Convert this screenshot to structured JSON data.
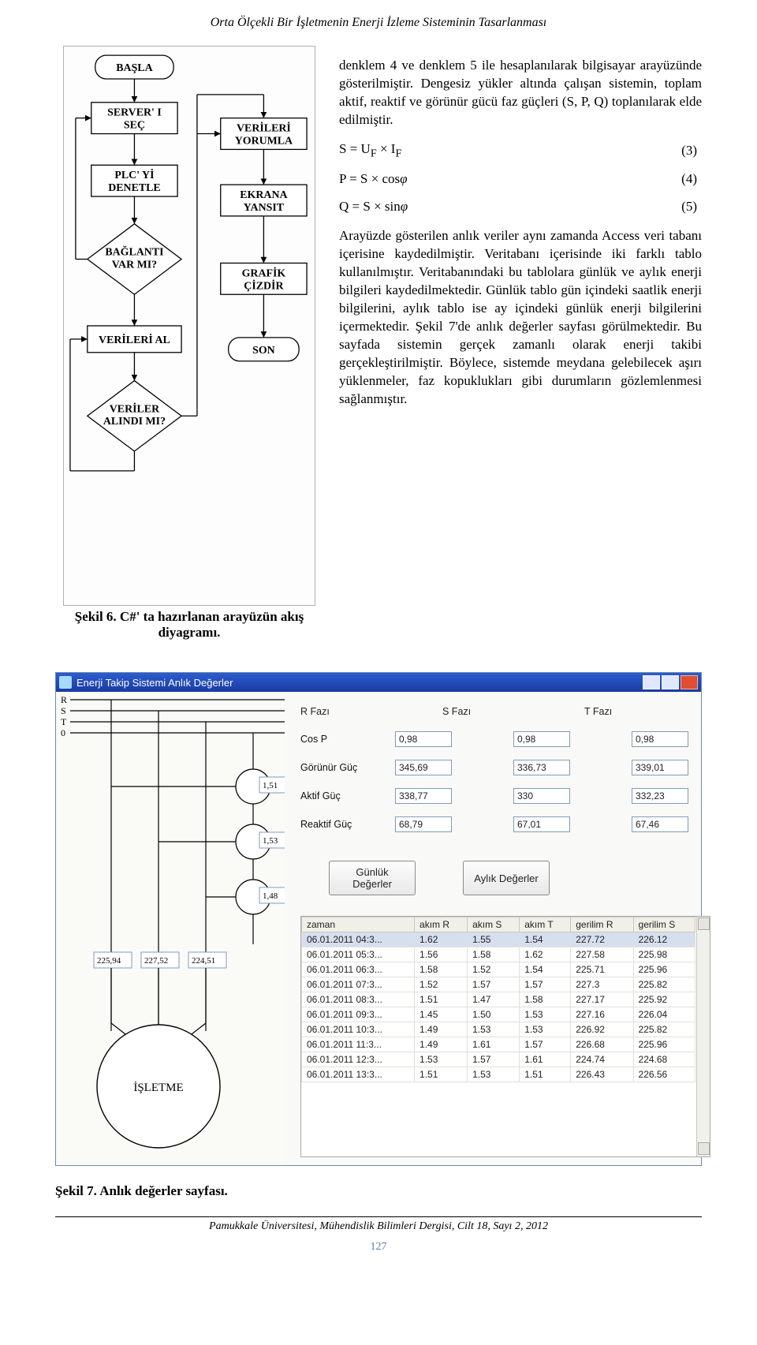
{
  "running_title": "Orta Ölçekli Bir İşletmenin Enerji İzleme Sisteminin Tasarlanması",
  "flowchart": {
    "nodes": {
      "start": "BAŞLA",
      "server": "SERVER' I\nSEÇ",
      "plc": "PLC' Yİ\nDENETLE",
      "conn": "BAĞLANTI\nVAR MI?",
      "fetch": "VERİLERİ AL",
      "got": "VERİLER\nALINDI MI?",
      "parse": "VERİLERİ\nYORUMLA",
      "show": "EKRANA\nYANSIT",
      "chart": "GRAFİK\nÇİZDİR",
      "end": "SON"
    }
  },
  "fig6_caption": "Şekil 6. C#' ta hazırlanan arayüzün akış diyagramı.",
  "para1": "denklem 4 ve denklem 5 ile hesaplanılarak bilgisayar arayüzünde gösterilmiştir. Dengesiz yükler altında çalışan sistemin, toplam aktif, reaktif ve görünür gücü faz güçleri (S, P, Q) toplanılarak elde edilmiştir.",
  "equations": {
    "eq3": "S = U_F × I_F",
    "eq3_num": "(3)",
    "eq4": "P = S × cosφ",
    "eq4_num": "(4)",
    "eq5": "Q = S × sinφ",
    "eq5_num": "(5)"
  },
  "para2": "Arayüzde gösterilen anlık veriler aynı zamanda Access veri tabanı içerisine kaydedilmiştir. Veritabanı içerisinde iki farklı tablo kullanılmıştır. Veritabanındaki bu tablolara günlük ve aylık enerji bilgileri kaydedilmektedir. Günlük tablo gün içindeki saatlik enerji bilgilerini, aylık tablo ise ay içindeki günlük enerji bilgilerini içermektedir. Şekil 7'de anlık değerler sayfası görülmektedir. Bu sayfada sistemin gerçek zamanlı olarak enerji takibi gerçekleştirilmiştir. Böylece, sistemde meydana gelebilecek aşırı yüklenmeler, faz kopuklukları gibi durumların gözlemlenmesi sağlanmıştır.",
  "screenshot": {
    "title": "Enerji Takip Sistemi Anlık Değerler",
    "left_labels": {
      "r": "R",
      "s": "S",
      "t": "T",
      "zero": "0"
    },
    "currents": {
      "r": "1,51",
      "s": "1,53",
      "t": "1,48"
    },
    "voltages": {
      "r": "225,94",
      "s": "227,52",
      "t": "224,51"
    },
    "business": "İŞLETME",
    "phase_headers": {
      "r": "R Fazı",
      "s": "S Fazı",
      "t": "T Fazı"
    },
    "metrics": {
      "cosp": {
        "label": "Cos P",
        "r": "0,98",
        "s": "0,98",
        "t": "0,98"
      },
      "app": {
        "label": "Görünür Güç",
        "r": "345,69",
        "s": "336,73",
        "t": "339,01"
      },
      "act": {
        "label": "Aktif Güç",
        "r": "338,77",
        "s": "330",
        "t": "332,23"
      },
      "rea": {
        "label": "Reaktif Güç",
        "r": "68,79",
        "s": "67,01",
        "t": "67,46"
      }
    },
    "buttons": {
      "daily": "Günlük\nDeğerler",
      "monthly": "Aylık Değerler"
    },
    "table": {
      "headers": [
        "zaman",
        "akım R",
        "akım S",
        "akım T",
        "gerilim R",
        "gerilim S"
      ],
      "rows": [
        [
          "06.01.2011 04:3...",
          "1.62",
          "1.55",
          "1.54",
          "227.72",
          "226.12"
        ],
        [
          "06.01.2011 05:3...",
          "1.56",
          "1.58",
          "1.62",
          "227.58",
          "225.98"
        ],
        [
          "06.01.2011 06:3...",
          "1.58",
          "1.52",
          "1.54",
          "225.71",
          "225.96"
        ],
        [
          "06.01.2011 07:3...",
          "1.52",
          "1.57",
          "1.57",
          "227.3",
          "225.82"
        ],
        [
          "06.01.2011 08:3...",
          "1.51",
          "1.47",
          "1.58",
          "227.17",
          "225.92"
        ],
        [
          "06.01.2011 09:3...",
          "1.45",
          "1.50",
          "1.53",
          "227.16",
          "226.04"
        ],
        [
          "06.01.2011 10:3...",
          "1.49",
          "1.53",
          "1.53",
          "226.92",
          "225.82"
        ],
        [
          "06.01.2011 11:3...",
          "1.49",
          "1.61",
          "1.57",
          "226.68",
          "225.96"
        ],
        [
          "06.01.2011 12:3...",
          "1.53",
          "1.57",
          "1.61",
          "224.74",
          "224.68"
        ],
        [
          "06.01.2011 13:3...",
          "1.51",
          "1.53",
          "1.51",
          "226.43",
          "226.56"
        ]
      ]
    }
  },
  "fig7_caption": "Şekil 7. Anlık değerler sayfası.",
  "footer_text": "Pamukkale Üniversitesi, Mühendislik Bilimleri Dergisi, Cilt 18, Sayı 2, 2012",
  "page_number": "127"
}
